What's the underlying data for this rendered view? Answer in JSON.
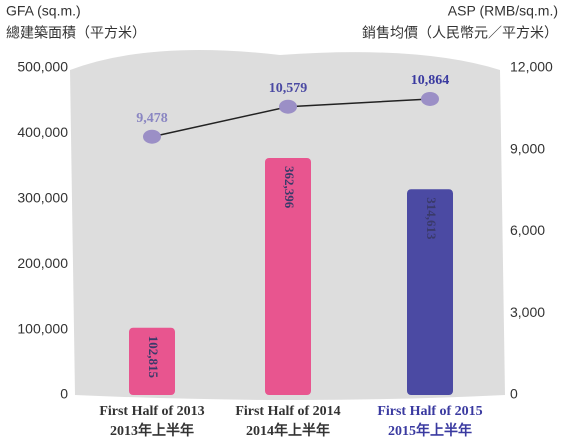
{
  "chart_data": {
    "type": "bar",
    "ylabel": "GFA (sq.m.)",
    "ylabel_cn": "總建築面積（平方米）",
    "y2label": "ASP (RMB/sq.m.)",
    "y2label_cn": "銷售均價（人民幣元／平方米）",
    "categories": [
      "First Half of 2013",
      "First Half of 2014",
      "First Half of 2015"
    ],
    "categories_cn": [
      "2013年上半年",
      "2014年上半年",
      "2015年上半年"
    ],
    "category_colors": [
      "#333333",
      "#333333",
      "#3a3aa0"
    ],
    "bars": {
      "values": [
        102815,
        362396,
        314613
      ],
      "value_labels": [
        "102,815",
        "362,396",
        "314,613"
      ],
      "colors": [
        "#e8558f",
        "#e8558f",
        "#4b4aa3"
      ]
    },
    "line": {
      "axis": "y2",
      "color": "#222222",
      "marker_color": "#9b8fc6",
      "values": [
        9478,
        10579,
        10864
      ],
      "value_labels": [
        "9,478",
        "10,579",
        "10,864"
      ],
      "label_colors": [
        "#8a86c2",
        "#4b4aa3",
        "#3a3aa0"
      ]
    },
    "ylim": [
      0,
      500000
    ],
    "yticks": [
      0,
      {
        "value": 100000,
        "label": "100,000"
      },
      {
        "value": 200000,
        "label": "200,000"
      },
      {
        "value": 300000,
        "label": "300,000"
      },
      {
        "value": 400000,
        "label": "400,000"
      },
      {
        "value": 500000,
        "label": "500,000"
      }
    ],
    "y2lim": [
      0,
      12000
    ],
    "y2ticks": [
      0,
      {
        "value": 3000,
        "label": "3,000"
      },
      {
        "value": 6000,
        "label": "6,000"
      },
      {
        "value": 9000,
        "label": "9,000"
      },
      {
        "value": 12000,
        "label": "12,000"
      }
    ]
  }
}
